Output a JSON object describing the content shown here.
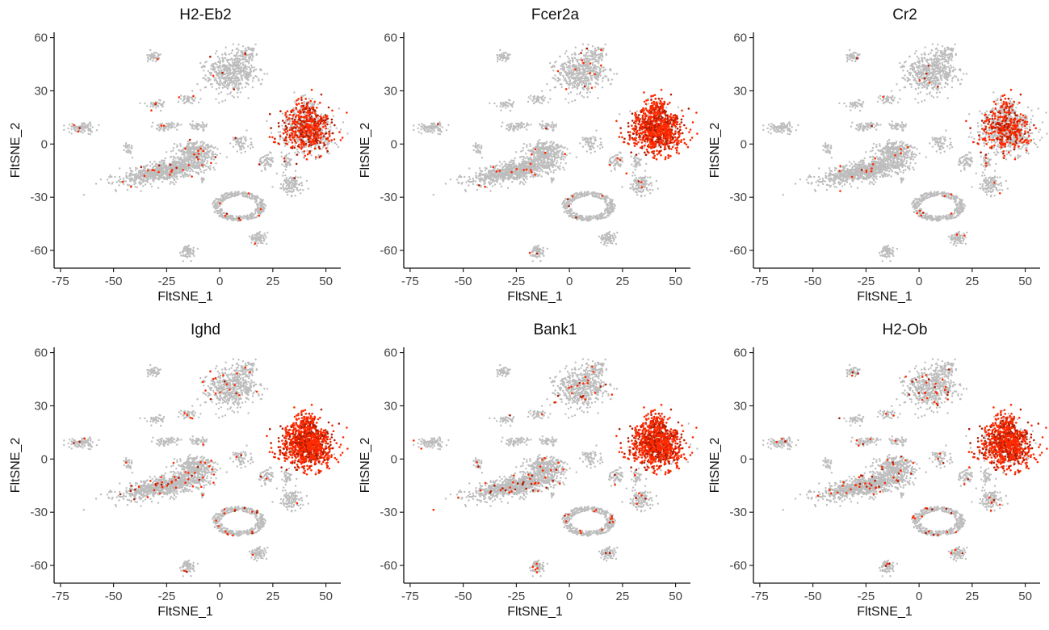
{
  "figure": {
    "layout": "2 rows x 3 columns",
    "colors": {
      "background_cells": "#bdbdbd",
      "expression": "#ff2a00",
      "expression_dark": "#b01a00",
      "axis": "#111111"
    }
  },
  "chart_data": [
    {
      "type": "scatter",
      "title": "H2-Eb2",
      "xlabel": "FltSNE_1",
      "ylabel": "FltSNE_2",
      "xlim": [
        -78,
        57
      ],
      "ylim": [
        -70,
        63
      ],
      "xticks": [
        "-75",
        "-50",
        "-25",
        "0",
        "25",
        "50"
      ],
      "yticks": [
        "60",
        "30",
        "0",
        "-30",
        "-60"
      ],
      "grid": false,
      "legend": "none",
      "expression_level": {
        "b_cell_cluster": 0.45,
        "background": 0.02
      }
    },
    {
      "type": "scatter",
      "title": "Fcer2a",
      "xlabel": "FltSNE_1",
      "ylabel": "FltSNE_2",
      "xlim": [
        -78,
        57
      ],
      "ylim": [
        -70,
        63
      ],
      "xticks": [
        "-75",
        "-50",
        "-25",
        "0",
        "25",
        "50"
      ],
      "yticks": [
        "60",
        "30",
        "0",
        "-30",
        "-60"
      ],
      "grid": false,
      "legend": "none",
      "expression_level": {
        "b_cell_cluster": 0.85,
        "background": 0.02
      }
    },
    {
      "type": "scatter",
      "title": "Cr2",
      "xlabel": "FltSNE_1",
      "ylabel": "FltSNE_2",
      "xlim": [
        -78,
        57
      ],
      "ylim": [
        -70,
        63
      ],
      "xticks": [
        "-75",
        "-50",
        "-25",
        "0",
        "25",
        "50"
      ],
      "yticks": [
        "60",
        "30",
        "0",
        "-30",
        "-60"
      ],
      "grid": false,
      "legend": "none",
      "expression_level": {
        "b_cell_cluster": 0.35,
        "background": 0.01
      }
    },
    {
      "type": "scatter",
      "title": "Ighd",
      "xlabel": "FltSNE_1",
      "ylabel": "FltSNE_2",
      "xlim": [
        -78,
        57
      ],
      "ylim": [
        -70,
        63
      ],
      "xticks": [
        "-75",
        "-50",
        "-25",
        "0",
        "25",
        "50"
      ],
      "yticks": [
        "60",
        "30",
        "0",
        "-30",
        "-60"
      ],
      "grid": false,
      "legend": "none",
      "expression_level": {
        "b_cell_cluster": 0.97,
        "background": 0.04
      }
    },
    {
      "type": "scatter",
      "title": "Bank1",
      "xlabel": "FltSNE_1",
      "ylabel": "FltSNE_2",
      "xlim": [
        -78,
        57
      ],
      "ylim": [
        -70,
        63
      ],
      "xticks": [
        "-75",
        "-50",
        "-25",
        "0",
        "25",
        "50"
      ],
      "yticks": [
        "60",
        "30",
        "0",
        "-30",
        "-60"
      ],
      "grid": false,
      "legend": "none",
      "expression_level": {
        "b_cell_cluster": 0.92,
        "background": 0.03
      }
    },
    {
      "type": "scatter",
      "title": "H2-Ob",
      "xlabel": "FltSNE_1",
      "ylabel": "FltSNE_2",
      "xlim": [
        -78,
        57
      ],
      "ylim": [
        -70,
        63
      ],
      "xticks": [
        "-75",
        "-50",
        "-25",
        "0",
        "25",
        "50"
      ],
      "yticks": [
        "60",
        "30",
        "0",
        "-30",
        "-60"
      ],
      "grid": false,
      "legend": "none",
      "expression_level": {
        "b_cell_cluster": 0.8,
        "background": 0.04
      }
    }
  ],
  "clusters": [
    {
      "name": "b-cell-cluster",
      "cx": 41,
      "cy": 8,
      "rx": 11,
      "ry": 11,
      "n": 900
    },
    {
      "name": "b-cell-cluster-top",
      "cx": 41,
      "cy": 20,
      "rx": 5,
      "ry": 6,
      "n": 120
    },
    {
      "name": "top-center",
      "cx": 5,
      "cy": 40,
      "rx": 11,
      "ry": 10,
      "n": 500
    },
    {
      "name": "top-center-tail",
      "cx": 12,
      "cy": 50,
      "rx": 5,
      "ry": 4,
      "n": 80
    },
    {
      "name": "large-diagonal",
      "cx": -25,
      "cy": -15,
      "rx": 18,
      "ry": 8,
      "n": 900
    },
    {
      "name": "diagonal-upper",
      "cx": -12,
      "cy": -4,
      "rx": 8,
      "ry": 5,
      "n": 260
    },
    {
      "name": "bottom-ring",
      "cx": 9,
      "cy": -35,
      "rx": 12,
      "ry": 8,
      "n": 420
    },
    {
      "name": "bottom-right-small",
      "cx": 18,
      "cy": -53,
      "rx": 3,
      "ry": 3,
      "n": 70
    },
    {
      "name": "bottom-small",
      "cx": -15,
      "cy": -61,
      "rx": 3,
      "ry": 3,
      "n": 80
    },
    {
      "name": "far-left",
      "cx": -65,
      "cy": 9,
      "rx": 5,
      "ry": 3,
      "n": 90
    },
    {
      "name": "left-small",
      "cx": -43,
      "cy": -3,
      "rx": 2,
      "ry": 3,
      "n": 30
    },
    {
      "name": "mid-left-top",
      "cx": -31,
      "cy": 49,
      "rx": 3,
      "ry": 3,
      "n": 50
    },
    {
      "name": "mid-left-row1",
      "cx": -30,
      "cy": 22,
      "rx": 4,
      "ry": 2,
      "n": 40
    },
    {
      "name": "mid-left-row1b",
      "cx": -15,
      "cy": 25,
      "rx": 4,
      "ry": 2,
      "n": 40
    },
    {
      "name": "mid-row2",
      "cx": -25,
      "cy": 10,
      "rx": 6,
      "ry": 2,
      "n": 60
    },
    {
      "name": "mid-row2b",
      "cx": -10,
      "cy": 10,
      "rx": 4,
      "ry": 2,
      "n": 40
    },
    {
      "name": "center-right-blobs",
      "cx": 10,
      "cy": 0,
      "rx": 5,
      "ry": 4,
      "n": 60
    },
    {
      "name": "right-mid",
      "cx": 22,
      "cy": -10,
      "rx": 3,
      "ry": 5,
      "n": 60
    },
    {
      "name": "right-lower",
      "cx": 34,
      "cy": -23,
      "rx": 5,
      "ry": 5,
      "n": 120
    },
    {
      "name": "right-lower-tail",
      "cx": 32,
      "cy": -10,
      "rx": 2,
      "ry": 4,
      "n": 40
    },
    {
      "name": "small-top-right",
      "cx": 13,
      "cy": 38,
      "rx": 1,
      "ry": 2,
      "n": 12
    },
    {
      "name": "small-red-left",
      "cx": -8,
      "cy": -20,
      "rx": 1,
      "ry": 1,
      "n": 10
    }
  ]
}
